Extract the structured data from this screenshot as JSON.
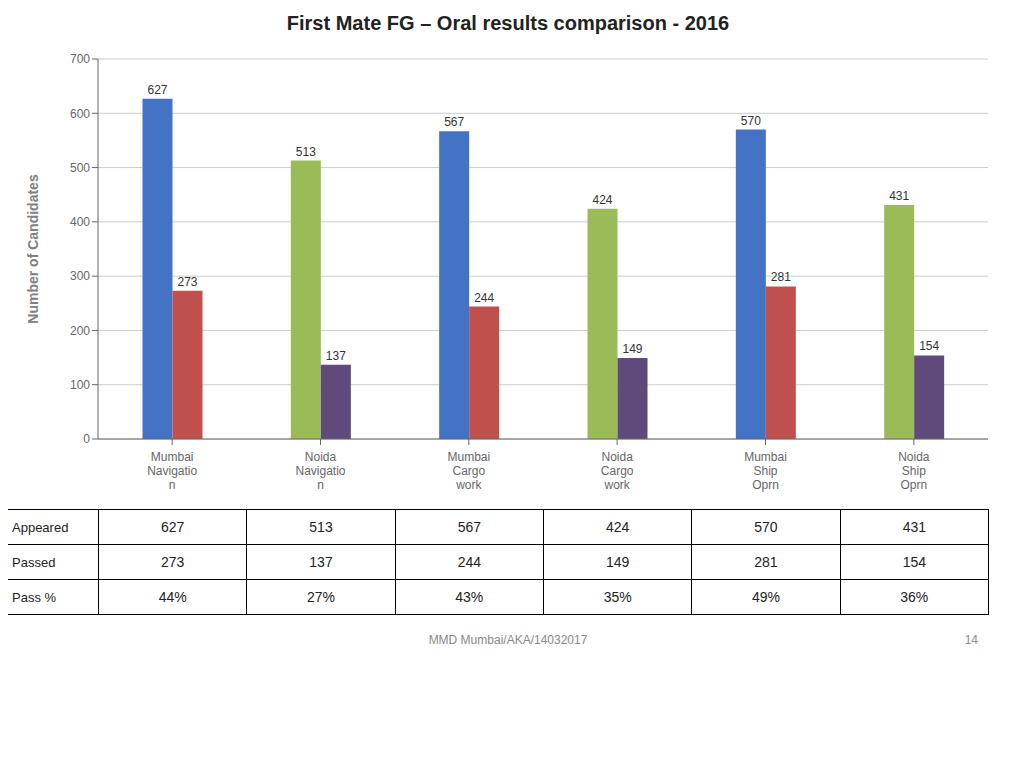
{
  "chart_data": {
    "type": "bar",
    "title": "First Mate FG – Oral results comparison - 2016",
    "ylabel": "Number of Candidates",
    "categories": [
      "Mumbai\nNavigatio\nn",
      "Noida\nNavigatio\nn",
      "Mumbai\nCargo\nwork",
      "Noida\nCargo\nwork",
      "Mumbai\nShip\nOprn",
      "Noida\nShip\nOprn"
    ],
    "series": [
      {
        "values": [
          627,
          513,
          567,
          424,
          570,
          431
        ],
        "colors": [
          "#4472C4",
          "#9BBB59",
          "#4472C4",
          "#9BBB59",
          "#4472C4",
          "#9BBB59"
        ]
      },
      {
        "values": [
          273,
          137,
          244,
          149,
          281,
          154
        ],
        "colors": [
          "#C0504D",
          "#604A7B",
          "#C0504D",
          "#604A7B",
          "#C0504D",
          "#604A7B"
        ]
      }
    ],
    "ylim": [
      0,
      700
    ],
    "yticks": [
      0,
      100,
      200,
      300,
      400,
      500,
      600,
      700
    ],
    "grid": true,
    "data_labels": true,
    "table": [
      {
        "name": "Appeared",
        "color": "#4472C4",
        "values": [
          627,
          513,
          567,
          424,
          570,
          431
        ]
      },
      {
        "name": "Passed",
        "color": "#C0504D",
        "values": [
          273,
          137,
          244,
          149,
          281,
          154
        ]
      },
      {
        "name": "Pass %",
        "color": "#9BBB59",
        "values": [
          44,
          27,
          43,
          35,
          49,
          36
        ],
        "value_labels": [
          "44%",
          "27%",
          "43%",
          "35%",
          "49%",
          "36%"
        ]
      }
    ],
    "annotations": [
      "MMD Mumbai/AKA/14032017",
      "14"
    ]
  }
}
